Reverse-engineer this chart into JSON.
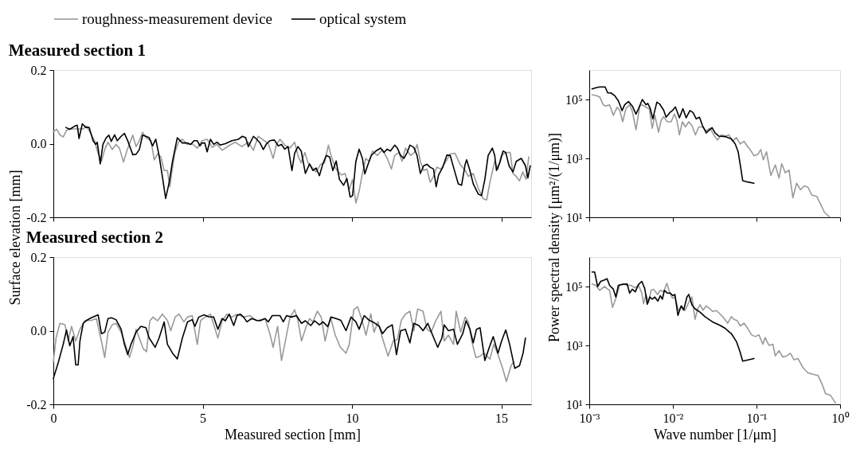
{
  "chart_data": [
    {
      "type": "line",
      "title": "Measured section 1",
      "ylabel": "Surface elevation [mm]",
      "legend": "top",
      "tick_labels": "y",
      "xlim": [
        0,
        16
      ],
      "ylim": [
        -0.2,
        0.2
      ],
      "xticks": [
        0,
        5,
        10,
        15
      ],
      "yticks": [
        {
          "value": -0.2,
          "label": "-0.2"
        },
        {
          "value": 0,
          "label": "0.0"
        },
        {
          "value": 0.2,
          "label": "0.2"
        }
      ],
      "series": [
        {
          "name": "roughness-measurement device",
          "color": "#999999",
          "x": [
            0.0,
            0.11,
            0.22,
            0.33,
            0.44,
            0.55,
            0.78,
            1.0,
            1.11,
            1.22,
            1.38,
            1.49,
            1.61,
            1.72,
            1.83,
            1.97,
            2.1,
            2.21,
            2.35,
            2.46,
            2.57,
            2.66,
            2.77,
            2.88,
            2.99,
            3.1,
            3.27,
            3.38,
            3.49,
            3.6,
            3.71,
            3.82,
            3.9,
            3.99,
            4.07,
            4.19,
            4.32,
            4.48,
            4.65,
            4.82,
            4.98,
            5.15,
            5.32,
            5.48,
            5.65,
            5.87,
            6.09,
            6.31,
            6.53,
            6.7,
            6.86,
            7.03,
            7.2,
            7.36,
            7.47,
            7.59,
            7.75,
            7.92,
            8.08,
            8.19,
            8.3,
            8.42,
            8.53,
            8.66,
            8.8,
            8.95,
            9.08,
            9.21,
            9.3,
            9.43,
            9.54,
            9.66,
            9.77,
            9.91,
            10.02,
            10.13,
            10.24,
            10.35,
            10.46,
            10.57,
            10.69,
            10.85,
            11.02,
            11.18,
            11.32,
            11.43,
            11.57,
            11.68,
            11.79,
            11.96,
            12.09,
            12.18,
            12.29,
            12.4,
            12.51,
            12.62,
            12.73,
            12.84,
            12.98,
            13.12,
            13.29,
            13.45,
            13.62,
            13.79,
            13.9,
            14.06,
            14.23,
            14.39,
            14.51,
            14.62,
            14.78,
            14.89,
            15.0,
            15.17,
            15.3,
            15.39,
            15.5,
            15.61,
            15.72,
            15.83,
            15.92
          ],
          "values": [
            0.032,
            0.039,
            0.024,
            0.018,
            0.036,
            0.04,
            0.04,
            0.04,
            0.048,
            0.032,
            0.008,
            -0.024,
            -0.048,
            -0.016,
            0.004,
            -0.016,
            -0.002,
            -0.012,
            -0.05,
            -0.02,
            0.004,
            0.023,
            -0.008,
            0.008,
            0.031,
            0.016,
            0.008,
            -0.044,
            -0.028,
            -0.036,
            -0.073,
            -0.073,
            -0.117,
            -0.064,
            -0.024,
            0.004,
            0.012,
            -0.002,
            0.0,
            -0.012,
            0.008,
            0.012,
            -0.01,
            -0.002,
            -0.018,
            -0.006,
            0.004,
            -0.008,
            0.004,
            -0.018,
            0.02,
            0.01,
            0.0,
            -0.04,
            -0.002,
            0.012,
            -0.004,
            -0.012,
            0.004,
            -0.032,
            -0.052,
            -0.024,
            -0.052,
            -0.064,
            -0.077,
            -0.056,
            -0.052,
            -0.004,
            -0.032,
            -0.064,
            -0.077,
            -0.085,
            -0.081,
            -0.125,
            -0.097,
            -0.161,
            -0.129,
            -0.081,
            -0.04,
            -0.048,
            -0.02,
            -0.032,
            -0.016,
            -0.04,
            -0.069,
            -0.032,
            -0.024,
            -0.048,
            -0.012,
            -0.032,
            -0.024,
            -0.002,
            -0.048,
            -0.073,
            -0.069,
            -0.105,
            -0.089,
            -0.064,
            -0.069,
            -0.052,
            -0.028,
            -0.026,
            -0.056,
            -0.073,
            -0.089,
            -0.081,
            -0.121,
            -0.149,
            -0.153,
            -0.105,
            -0.048,
            -0.069,
            -0.032,
            -0.024,
            -0.024,
            -0.081,
            -0.089,
            -0.101,
            -0.077,
            -0.097,
            -0.036
          ]
        },
        {
          "name": "optical system",
          "color": "#000000",
          "x": [
            0.42,
            0.55,
            0.72,
            0.8,
            0.86,
            0.97,
            1.09,
            1.2,
            1.33,
            1.42,
            1.47,
            1.57,
            1.66,
            1.77,
            1.86,
            1.94,
            2.05,
            2.14,
            2.27,
            2.38,
            2.49,
            2.66,
            2.77,
            2.88,
            2.99,
            3.1,
            3.21,
            3.32,
            3.43,
            3.54,
            3.65,
            3.76,
            3.88,
            3.99,
            4.15,
            4.32,
            4.48,
            4.6,
            4.71,
            4.82,
            4.91,
            4.98,
            5.07,
            5.15,
            5.26,
            5.37,
            5.48,
            5.59,
            5.76,
            5.98,
            6.2,
            6.33,
            6.44,
            6.53,
            6.7,
            6.81,
            6.92,
            7.03,
            7.14,
            7.25,
            7.4,
            7.53,
            7.64,
            7.75,
            7.86,
            7.99,
            8.08,
            8.19,
            8.3,
            8.44,
            8.58,
            8.69,
            8.8,
            8.91,
            9.02,
            9.14,
            9.25,
            9.36,
            9.47,
            9.58,
            9.72,
            9.83,
            9.94,
            10.02,
            10.13,
            10.24,
            10.35,
            10.43,
            10.52,
            10.65,
            10.8,
            10.96,
            11.07,
            11.18,
            11.29,
            11.43,
            11.52,
            11.63,
            11.74,
            11.85,
            11.94,
            12.07,
            12.18,
            12.29,
            12.4,
            12.51,
            12.62,
            12.73,
            12.82,
            12.9,
            13.04,
            13.18,
            13.29,
            13.4,
            13.56,
            13.67,
            13.79,
            13.84,
            13.95,
            14.06,
            14.23,
            14.34,
            14.45,
            14.56,
            14.7,
            14.78,
            14.84,
            14.95,
            15.06,
            15.15,
            15.26,
            15.39,
            15.5,
            15.67,
            15.81,
            15.89,
            15.97
          ],
          "values": [
            0.044,
            0.039,
            0.048,
            0.05,
            0.014,
            0.054,
            0.044,
            0.044,
            0.008,
            -0.002,
            0.004,
            -0.055,
            -0.002,
            0.016,
            0.023,
            0.006,
            0.024,
            0.008,
            0.02,
            0.028,
            0.008,
            -0.03,
            -0.029,
            -0.016,
            0.023,
            0.02,
            0.016,
            -0.006,
            0.012,
            -0.032,
            -0.089,
            -0.149,
            -0.105,
            -0.048,
            0.016,
            0.002,
            0.002,
            -0.002,
            0.008,
            0.008,
            -0.006,
            0.002,
            0.002,
            -0.022,
            0.012,
            -0.002,
            0.004,
            -0.004,
            0.0,
            0.008,
            0.012,
            0.02,
            0.016,
            -0.008,
            0.02,
            0.012,
            0.002,
            -0.016,
            0.0,
            0.008,
            0.01,
            -0.006,
            -0.002,
            -0.015,
            -0.008,
            -0.073,
            -0.026,
            -0.008,
            -0.02,
            -0.081,
            -0.055,
            -0.073,
            -0.066,
            -0.087,
            -0.056,
            -0.032,
            -0.036,
            -0.073,
            -0.047,
            -0.097,
            -0.113,
            -0.095,
            -0.145,
            -0.141,
            -0.048,
            -0.015,
            -0.04,
            -0.082,
            -0.06,
            -0.032,
            -0.02,
            -0.012,
            -0.024,
            -0.015,
            -0.02,
            -0.004,
            -0.012,
            -0.032,
            -0.04,
            -0.024,
            -0.004,
            -0.01,
            -0.032,
            -0.081,
            -0.06,
            -0.056,
            -0.064,
            -0.069,
            -0.117,
            -0.085,
            -0.064,
            -0.031,
            -0.032,
            -0.064,
            -0.109,
            -0.113,
            -0.056,
            -0.044,
            -0.073,
            -0.109,
            -0.137,
            -0.141,
            -0.097,
            -0.032,
            -0.012,
            -0.032,
            -0.073,
            -0.052,
            -0.02,
            -0.024,
            -0.06,
            -0.077,
            -0.048,
            -0.04,
            -0.06,
            -0.093,
            -0.06
          ]
        }
      ]
    },
    {
      "type": "line",
      "ylabel": "Power spectral density [μm²/(1/μm)]",
      "log": "xy",
      "tick_labels": "y",
      "xlim": [
        0.001,
        1
      ],
      "ylim": [
        10,
        1000000
      ],
      "xticks": [
        {
          "value": 0.001,
          "label": null
        },
        {
          "value": 0.01,
          "label": null
        },
        {
          "value": 0.1,
          "label": null
        },
        {
          "value": 1,
          "label": null
        }
      ],
      "yticks": [
        {
          "value": 10,
          "label": "10¹"
        },
        {
          "value": 1000,
          "label": "10³"
        },
        {
          "value": 100000,
          "label": "10⁵"
        }
      ],
      "series": [
        {
          "color": "#999999",
          "x": [
            0.00108,
            0.0012,
            0.00133,
            0.00147,
            0.00158,
            0.00175,
            0.00194,
            0.00215,
            0.00231,
            0.00251,
            0.00274,
            0.00304,
            0.00327,
            0.00362,
            0.00402,
            0.00431,
            0.00478,
            0.00522,
            0.00567,
            0.00608,
            0.00674,
            0.00723,
            0.00774,
            0.00859,
            0.00953,
            0.01043,
            0.01117,
            0.01197,
            0.013,
            0.0141,
            0.0155,
            0.0169,
            0.0186,
            0.0204,
            0.0226,
            0.0251,
            0.0278,
            0.0308,
            0.0342,
            0.038,
            0.0422,
            0.0468,
            0.0519,
            0.0575,
            0.0638,
            0.0708,
            0.0785,
            0.0853,
            0.0933,
            0.1035,
            0.1125,
            0.1205,
            0.1318,
            0.1483,
            0.168,
            0.186,
            0.2,
            0.221,
            0.245,
            0.272,
            0.302,
            0.336,
            0.372,
            0.413,
            0.458,
            0.526,
            0.583,
            0.647,
            0.743
          ],
          "values": [
            145000,
            136000,
            123000,
            66000,
            60000,
            66000,
            29000,
            54000,
            44000,
            17500,
            49000,
            66000,
            40000,
            9500,
            60000,
            66000,
            54000,
            49000,
            10500,
            29000,
            7700,
            19500,
            26000,
            17500,
            17500,
            32000,
            19500,
            6300,
            17500,
            11700,
            17500,
            13000,
            6300,
            11700,
            11700,
            8600,
            10500,
            6300,
            4200,
            6300,
            5700,
            6300,
            3800,
            5100,
            3100,
            3800,
            2500,
            1850,
            1230,
            1360,
            2000,
            900,
            1670,
            264,
            600,
            215,
            664,
            324,
            400,
            46,
            143,
            86,
            117,
            105,
            57,
            51,
            28,
            15,
            10.4
          ]
        },
        {
          "color": "#000000",
          "x": [
            0.00108,
            0.0012,
            0.00133,
            0.00155,
            0.00166,
            0.00181,
            0.00201,
            0.00223,
            0.00247,
            0.00265,
            0.00294,
            0.00327,
            0.00362,
            0.00388,
            0.00431,
            0.00478,
            0.00501,
            0.00537,
            0.00575,
            0.00643,
            0.00698,
            0.00774,
            0.0083,
            0.0092,
            0.00986,
            0.01072,
            0.01197,
            0.01318,
            0.01442,
            0.016,
            0.0174,
            0.019,
            0.0208,
            0.0226,
            0.0251,
            0.0269,
            0.0294,
            0.032,
            0.0355,
            0.0422,
            0.0501,
            0.0556,
            0.0604,
            0.0647,
            0.0684,
            0.0785,
            0.0933
          ],
          "values": [
            227000,
            251000,
            267000,
            267000,
            167000,
            167000,
            136000,
            90000,
            42000,
            66000,
            85000,
            60000,
            32000,
            49000,
            100000,
            66000,
            74000,
            49000,
            22000,
            81000,
            69000,
            44000,
            25000,
            36000,
            42000,
            56000,
            24000,
            49000,
            24000,
            42000,
            36000,
            22000,
            25000,
            13000,
            7300,
            8900,
            11000,
            7300,
            5700,
            5500,
            4600,
            3100,
            1670,
            490,
            175,
            158,
            143
          ]
        }
      ]
    },
    {
      "type": "line",
      "title": "Measured section 2",
      "xlabel": "Measured section [mm]",
      "xlim": [
        0,
        16
      ],
      "ylim": [
        -0.2,
        0.2
      ],
      "xticks": [
        0,
        5,
        10,
        15
      ],
      "yticks": [
        {
          "value": -0.2,
          "label": "-0.2"
        },
        {
          "value": 0,
          "label": "0.0"
        },
        {
          "value": 0.2,
          "label": "0.2"
        }
      ],
      "series": [
        {
          "color": "#999999",
          "x": [
            0.0,
            0.09,
            0.22,
            0.39,
            0.5,
            0.61,
            0.75,
            0.89,
            1.05,
            1.27,
            1.44,
            1.61,
            1.72,
            1.83,
            1.97,
            2.1,
            2.27,
            2.44,
            2.55,
            2.68,
            2.77,
            2.88,
            3.01,
            3.12,
            3.23,
            3.34,
            3.49,
            3.65,
            3.82,
            3.93,
            4.08,
            4.21,
            4.37,
            4.49,
            4.65,
            4.82,
            4.93,
            5.09,
            5.26,
            5.51,
            5.65,
            5.81,
            5.98,
            6.15,
            6.37,
            6.59,
            6.81,
            7.09,
            7.25,
            7.36,
            7.51,
            7.64,
            7.77,
            7.92,
            8.08,
            8.19,
            8.31,
            8.47,
            8.58,
            8.69,
            8.84,
            8.97,
            9.1,
            9.28,
            9.44,
            9.61,
            9.8,
            9.91,
            10.06,
            10.19,
            10.32,
            10.47,
            10.63,
            10.74,
            10.87,
            11.02,
            11.21,
            11.38,
            11.52,
            11.65,
            11.79,
            11.94,
            12.07,
            12.2,
            12.38,
            12.51,
            12.65,
            12.79,
            12.98,
            13.09,
            13.23,
            13.4,
            13.49,
            13.64,
            13.79,
            13.9,
            14.01,
            14.15,
            14.29,
            14.42,
            14.62,
            14.75,
            14.89,
            15.06,
            15.17,
            15.34,
            15.42
          ],
          "values": [
            -0.085,
            -0.02,
            0.02,
            0.016,
            -0.028,
            0.012,
            -0.028,
            0.004,
            0.027,
            0.028,
            0.033,
            -0.028,
            -0.073,
            -0.004,
            0.016,
            0.02,
            -0.004,
            -0.045,
            -0.073,
            -0.037,
            0.004,
            -0.02,
            -0.049,
            -0.057,
            0.027,
            0.037,
            0.027,
            0.045,
            0.028,
            0.0,
            0.037,
            0.045,
            0.024,
            0.037,
            0.041,
            -0.037,
            0.028,
            0.037,
            0.045,
            -0.02,
            0.027,
            0.045,
            0.037,
            0.045,
            0.037,
            0.041,
            0.027,
            0.033,
            -0.008,
            -0.045,
            0.012,
            -0.081,
            -0.028,
            0.035,
            0.057,
            0.028,
            -0.028,
            0.012,
            0.033,
            0.024,
            0.053,
            0.037,
            -0.028,
            0.037,
            -0.012,
            -0.045,
            -0.061,
            -0.037,
            0.057,
            0.065,
            0.033,
            -0.012,
            0.046,
            -0.004,
            0.024,
            -0.02,
            -0.069,
            -0.028,
            -0.024,
            0.028,
            0.045,
            0.053,
            0.0,
            0.059,
            0.053,
            0.004,
            -0.004,
            0.024,
            0.053,
            -0.028,
            -0.012,
            -0.037,
            0.053,
            -0.004,
            0.037,
            0.024,
            -0.028,
            -0.073,
            -0.069,
            -0.061,
            -0.077,
            -0.037,
            -0.065,
            -0.106,
            -0.138,
            -0.093,
            -0.085
          ]
        },
        {
          "color": "#000000",
          "x": [
            0.0,
            0.17,
            0.33,
            0.44,
            0.55,
            0.66,
            0.75,
            0.83,
            0.89,
            1.0,
            1.11,
            1.27,
            1.44,
            1.5,
            1.61,
            1.72,
            1.83,
            1.94,
            2.1,
            2.27,
            2.38,
            2.49,
            2.6,
            2.77,
            2.93,
            3.1,
            3.21,
            3.41,
            3.54,
            3.71,
            3.82,
            3.99,
            4.15,
            4.32,
            4.49,
            4.65,
            4.74,
            4.87,
            5.04,
            5.2,
            5.37,
            5.51,
            5.65,
            5.76,
            5.89,
            6.04,
            6.15,
            6.26,
            6.37,
            6.48,
            6.64,
            6.81,
            6.92,
            7.09,
            7.2,
            7.33,
            7.59,
            7.7,
            7.81,
            7.97,
            8.14,
            8.31,
            8.44,
            8.62,
            8.75,
            8.91,
            9.03,
            9.19,
            9.3,
            9.47,
            9.63,
            9.8,
            9.97,
            10.13,
            10.24,
            10.41,
            10.58,
            10.74,
            10.91,
            11.02,
            11.18,
            11.35,
            11.49,
            11.63,
            11.79,
            11.94,
            12.07,
            12.24,
            12.38,
            12.54,
            12.74,
            12.87,
            13.01,
            13.09,
            13.23,
            13.4,
            13.53,
            13.71,
            13.82,
            13.95,
            14.06,
            14.17,
            14.29,
            14.45,
            14.6,
            14.73,
            14.89,
            15.01,
            15.15,
            15.28,
            15.45,
            15.61,
            15.73,
            15.81
          ],
          "values": [
            -0.13,
            -0.085,
            -0.037,
            0.002,
            -0.041,
            -0.016,
            -0.093,
            -0.093,
            -0.028,
            0.02,
            0.028,
            0.035,
            0.041,
            0.043,
            -0.008,
            -0.004,
            0.033,
            0.035,
            0.03,
            0.004,
            -0.037,
            -0.065,
            -0.037,
            -0.004,
            0.012,
            0.008,
            -0.02,
            -0.045,
            -0.02,
            0.024,
            -0.037,
            -0.061,
            -0.077,
            -0.02,
            0.024,
            0.03,
            0.012,
            0.037,
            0.043,
            0.038,
            0.037,
            0.004,
            0.033,
            0.027,
            0.045,
            0.014,
            0.041,
            0.045,
            0.037,
            0.024,
            0.033,
            0.028,
            0.027,
            0.033,
            0.024,
            0.041,
            0.041,
            0.024,
            0.041,
            0.037,
            0.041,
            0.02,
            0.027,
            0.014,
            0.027,
            0.016,
            0.024,
            0.011,
            0.037,
            0.033,
            0.028,
            0.0,
            0.037,
            0.024,
            0.004,
            0.041,
            0.028,
            0.022,
            0.012,
            -0.008,
            0.008,
            0.016,
            -0.065,
            0.0,
            0.004,
            -0.033,
            0.02,
            0.014,
            0.0,
            0.02,
            -0.02,
            -0.045,
            -0.02,
            0.016,
            0.0,
            0.004,
            -0.037,
            -0.008,
            0.027,
            0.004,
            -0.033,
            0.004,
            0.008,
            -0.081,
            -0.045,
            -0.016,
            -0.061,
            -0.028,
            0.002,
            -0.037,
            -0.102,
            -0.095,
            -0.061,
            -0.02
          ]
        }
      ]
    },
    {
      "type": "line",
      "xlabel": "Wave number [1/μm]",
      "log": "xy",
      "xlim": [
        0.001,
        1
      ],
      "ylim": [
        10,
        1000000
      ],
      "xticks": [
        {
          "value": 0.001,
          "label": "10⁻³"
        },
        {
          "value": 0.01,
          "label": "10⁻²"
        },
        {
          "value": 0.1,
          "label": "10⁻¹"
        },
        {
          "value": 1,
          "label": "10⁰"
        }
      ],
      "yticks": [
        {
          "value": 10,
          "label": "10¹"
        },
        {
          "value": 1000,
          "label": "10³"
        },
        {
          "value": 100000,
          "label": "10⁵"
        }
      ],
      "series": [
        {
          "color": "#999999",
          "x": [
            0.00108,
            0.0012,
            0.00133,
            0.00152,
            0.00175,
            0.0019,
            0.00208,
            0.00231,
            0.00256,
            0.00284,
            0.00315,
            0.0035,
            0.00388,
            0.00425,
            0.00446,
            0.00478,
            0.00512,
            0.00548,
            0.00587,
            0.00652,
            0.00708,
            0.00774,
            0.00847,
            0.0092,
            0.00986,
            0.01057,
            0.01172,
            0.01282,
            0.01393,
            0.0155,
            0.0169,
            0.0184,
            0.0197,
            0.0211,
            0.0229,
            0.0251,
            0.0278,
            0.0298,
            0.0331,
            0.0366,
            0.0407,
            0.0452,
            0.0501,
            0.0537,
            0.0587,
            0.0638,
            0.0708,
            0.0785,
            0.0871,
            0.0966,
            0.107,
            0.119,
            0.127,
            0.141,
            0.157,
            0.168,
            0.186,
            0.207,
            0.229,
            0.254,
            0.282,
            0.313,
            0.36,
            0.413,
            0.474,
            0.545,
            0.604,
            0.67,
            0.769,
            0.883
          ],
          "values": [
            123000,
            110000,
            74000,
            100000,
            74000,
            19500,
            40000,
            110000,
            123000,
            110000,
            110000,
            90000,
            110000,
            60000,
            26000,
            54000,
            29000,
            74000,
            81000,
            54000,
            74000,
            66000,
            128000,
            60000,
            40000,
            44000,
            15200,
            22000,
            15200,
            29000,
            44000,
            7700,
            16500,
            24000,
            15800,
            22000,
            17500,
            14300,
            15200,
            11700,
            8600,
            5700,
            9500,
            7700,
            7000,
            4600,
            5700,
            3800,
            2300,
            2000,
            2300,
            1100,
            1850,
            1000,
            1100,
            441,
            664,
            400,
            441,
            541,
            324,
            360,
            175,
            117,
            105,
            95,
            51,
            23,
            20,
            11.1
          ]
        },
        {
          "color": "#000000",
          "x": [
            0.00108,
            0.00116,
            0.00126,
            0.00137,
            0.00152,
            0.00163,
            0.00175,
            0.00194,
            0.00208,
            0.00223,
            0.00247,
            0.00284,
            0.00304,
            0.00327,
            0.00355,
            0.00388,
            0.00425,
            0.00461,
            0.00494,
            0.0053,
            0.00567,
            0.00608,
            0.00661,
            0.00708,
            0.00748,
            0.00791,
            0.00859,
            0.00933,
            0.01,
            0.01057,
            0.01148,
            0.01256,
            0.01346,
            0.01472,
            0.0155,
            0.0169,
            0.0184,
            0.0211,
            0.0242,
            0.0298,
            0.0366,
            0.0422,
            0.0501,
            0.0575,
            0.0629,
            0.0684,
            0.0933
          ],
          "values": [
            310000,
            310000,
            100000,
            150000,
            167000,
            185000,
            110000,
            81000,
            44000,
            110000,
            118000,
            123000,
            60000,
            81000,
            66000,
            118000,
            150000,
            85000,
            25000,
            44000,
            37000,
            44000,
            32000,
            49000,
            37000,
            74000,
            60000,
            60000,
            49000,
            54000,
            10500,
            22000,
            15800,
            44000,
            54000,
            24000,
            17500,
            13500,
            9500,
            6300,
            4800,
            3800,
            2500,
            1360,
            664,
            293,
            360
          ]
        }
      ]
    }
  ]
}
